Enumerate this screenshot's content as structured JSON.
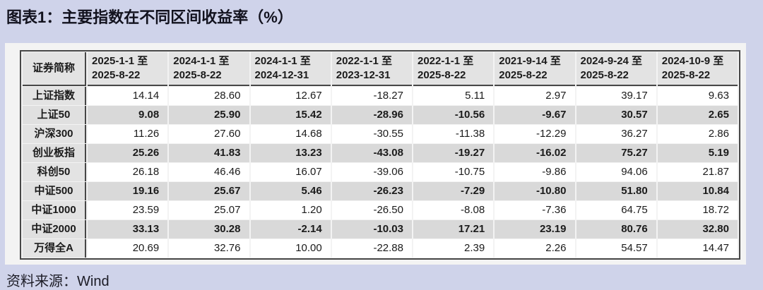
{
  "title": "图表1：主要指数在不同区间收益率（%）",
  "source": "资料来源：Wind",
  "colors": {
    "page_background": "#cfd3ea",
    "panel_background": "#f3f3f3",
    "header_background": "#e3e3e3",
    "stripe_row_background": "#d9d9d9",
    "odd_row_background": "#ffffff",
    "table_border": "#474747",
    "text": "#1b1b1b"
  },
  "chart_data": {
    "type": "table",
    "title": "图表1：主要指数在不同区间收益率（%）",
    "unit": "%",
    "columns": [
      "证券简称",
      "2025-1-1 至\n2025-8-22",
      "2024-1-1 至\n2025-8-22",
      "2024-1-1 至\n2024-12-31",
      "2022-1-1 至\n2023-12-31",
      "2022-1-1 至\n2025-8-22",
      "2021-9-14 至\n2025-8-22",
      "2024-9-24 至\n2025-8-22",
      "2024-10-9 至\n2025-8-22"
    ],
    "rows": [
      {
        "name": "上证指数",
        "values": [
          "14.14",
          "28.60",
          "12.67",
          "-18.27",
          "5.11",
          "2.97",
          "39.17",
          "9.63"
        ]
      },
      {
        "name": "上证50",
        "values": [
          "9.08",
          "25.90",
          "15.42",
          "-28.96",
          "-10.56",
          "-9.67",
          "30.57",
          "2.65"
        ]
      },
      {
        "name": "沪深300",
        "values": [
          "11.26",
          "27.60",
          "14.68",
          "-30.55",
          "-11.38",
          "-12.29",
          "36.27",
          "2.86"
        ]
      },
      {
        "name": "创业板指",
        "values": [
          "25.26",
          "41.83",
          "13.23",
          "-43.08",
          "-19.27",
          "-16.02",
          "75.27",
          "5.19"
        ]
      },
      {
        "name": "科创50",
        "values": [
          "26.18",
          "46.46",
          "16.07",
          "-39.06",
          "-10.75",
          "-9.86",
          "94.06",
          "21.87"
        ]
      },
      {
        "name": "中证500",
        "values": [
          "19.16",
          "25.67",
          "5.46",
          "-26.23",
          "-7.29",
          "-10.80",
          "51.80",
          "10.84"
        ]
      },
      {
        "name": "中证1000",
        "values": [
          "23.59",
          "25.07",
          "1.20",
          "-26.50",
          "-8.08",
          "-7.36",
          "64.75",
          "18.72"
        ]
      },
      {
        "name": "中证2000",
        "values": [
          "33.13",
          "30.28",
          "-2.14",
          "-10.03",
          "17.21",
          "23.19",
          "80.76",
          "32.80"
        ]
      },
      {
        "name": "万得全A",
        "values": [
          "20.69",
          "32.76",
          "10.00",
          "-22.88",
          "2.39",
          "2.26",
          "54.57",
          "14.47"
        ]
      }
    ]
  }
}
